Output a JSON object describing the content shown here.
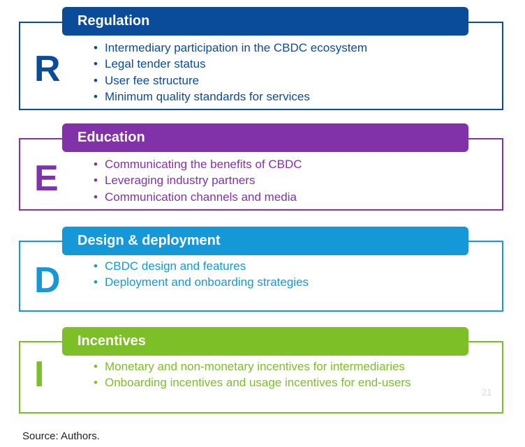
{
  "colors": {
    "regulation": "#0a4c9a",
    "education": "#8232a8",
    "design": "#1498d8",
    "incentives": "#7cbf26"
  },
  "sections": [
    {
      "key": "regulation",
      "letter": "R",
      "title": "Regulation",
      "items": [
        "Intermediary participation in the CBDC ecosystem",
        "Legal tender status",
        "User fee structure",
        "Minimum quality standards for services"
      ]
    },
    {
      "key": "education",
      "letter": "E",
      "title": "Education",
      "items": [
        "Communicating the benefits of CBDC",
        "Leveraging industry partners",
        "Communication channels and media"
      ]
    },
    {
      "key": "design",
      "letter": "D",
      "title": "Design & deployment",
      "items": [
        "CBDC design and features",
        "Deployment and onboarding strategies"
      ]
    },
    {
      "key": "incentives",
      "letter": "I",
      "title": "Incentives",
      "items": [
        "Monetary and non-monetary incentives for intermediaries",
        "Onboarding incentives and usage incentives for end-users"
      ]
    }
  ],
  "page_number": "21",
  "source": "Source: Authors."
}
